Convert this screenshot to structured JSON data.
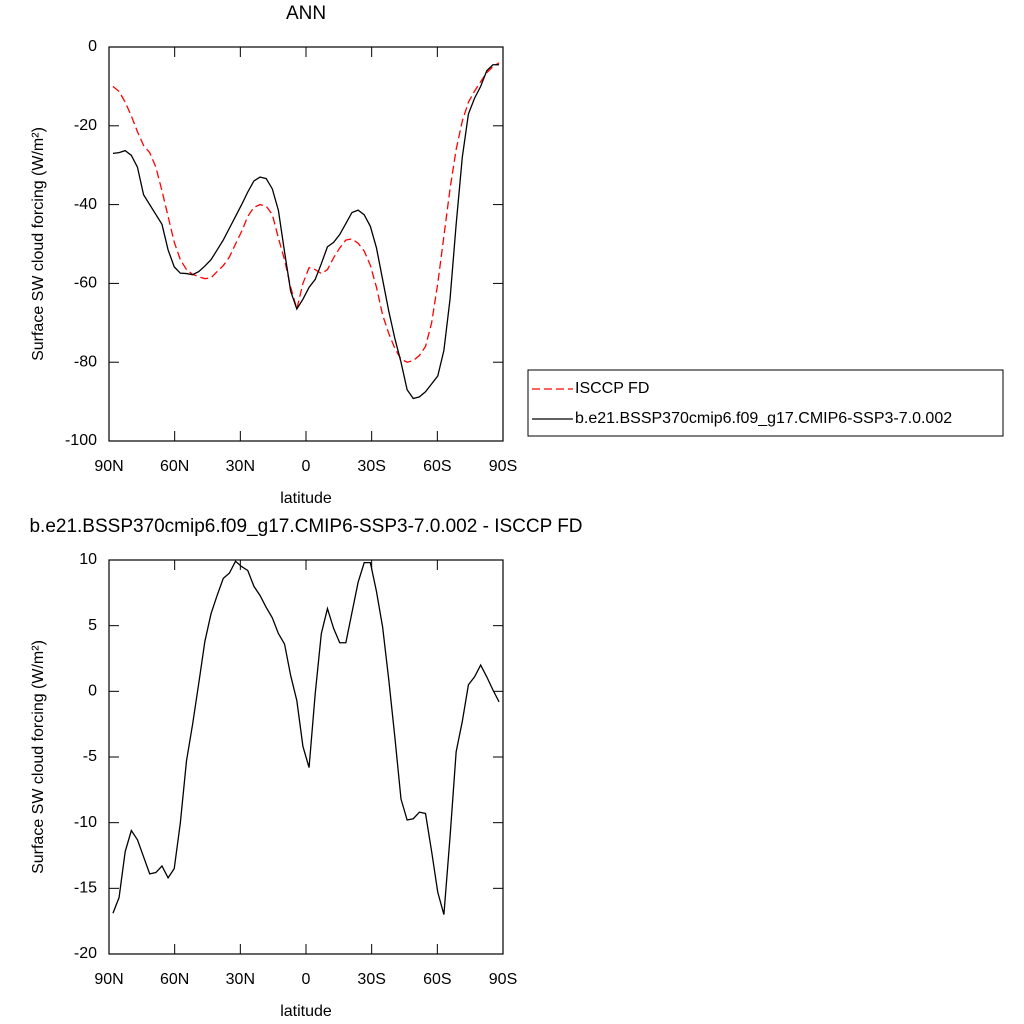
{
  "chart_data": [
    {
      "type": "line",
      "title": "ANN",
      "xlabel": "latitude",
      "ylabel": "Surface SW cloud forcing (W/m²)",
      "x": [
        88.2,
        85.4,
        82.6,
        79.8,
        77,
        74.2,
        71.4,
        68.6,
        65.8,
        63,
        60.2,
        57.4,
        54.6,
        51.8,
        49,
        46.2,
        43.4,
        40.6,
        37.8,
        35,
        32.2,
        29.4,
        26.6,
        23.8,
        21,
        18.2,
        15.4,
        12.6,
        9.8,
        7,
        4.2,
        1.4,
        -1.4,
        -4.2,
        -7,
        -9.8,
        -12.6,
        -15.4,
        -18.2,
        -21,
        -23.8,
        -26.6,
        -29.4,
        -32.2,
        -35,
        -37.8,
        -40.6,
        -43.4,
        -46.2,
        -49,
        -51.8,
        -54.6,
        -57.4,
        -60.2,
        -63,
        -65.8,
        -68.6,
        -71.4,
        -74.2,
        -77,
        -79.8,
        -82.6,
        -85.4,
        -88.2
      ],
      "series": [
        {
          "name": "ISCCP FD",
          "color": "#ff0000",
          "style": "dashed",
          "values": [
            -10,
            -11.3,
            -14,
            -17.5,
            -21.5,
            -25,
            -26.8,
            -30.5,
            -36.5,
            -43,
            -49.5,
            -54,
            -56.5,
            -57.7,
            -58.3,
            -58.8,
            -58.6,
            -57,
            -55.5,
            -53.3,
            -50,
            -46.8,
            -43,
            -40.7,
            -40,
            -40.4,
            -42.5,
            -48.5,
            -54,
            -61,
            -66.5,
            -60,
            -56,
            -56.5,
            -57.5,
            -56.5,
            -53.5,
            -51,
            -49,
            -48.7,
            -49.8,
            -51.8,
            -55.4,
            -61,
            -68,
            -72.7,
            -76.5,
            -79.2,
            -80,
            -79.6,
            -78.3,
            -76,
            -70,
            -60,
            -48,
            -36,
            -26,
            -18.8,
            -14,
            -11.2,
            -8.8,
            -6.5,
            -5,
            -4
          ]
        },
        {
          "name": "b.e21.BSSP370cmip6.f09_g17.CMIP6-SSP3-7.0.002",
          "color": "#000000",
          "style": "solid",
          "values": [
            -27,
            -26.8,
            -26.3,
            -27.5,
            -30.5,
            -37.5,
            -40,
            -42.5,
            -45,
            -51.5,
            -55.8,
            -57.4,
            -57.5,
            -57.8,
            -57,
            -55.6,
            -54,
            -51.5,
            -49,
            -46,
            -43,
            -40,
            -36.8,
            -34,
            -33,
            -33.4,
            -36,
            -41.5,
            -52,
            -62,
            -66.5,
            -64,
            -61,
            -59,
            -55,
            -50.7,
            -49.6,
            -47.6,
            -44.8,
            -42,
            -41.4,
            -42.6,
            -45.5,
            -51,
            -59,
            -67,
            -74,
            -80,
            -87,
            -89.2,
            -88.8,
            -87.5,
            -85.5,
            -83.5,
            -77,
            -64,
            -45,
            -28,
            -17,
            -13,
            -10,
            -6,
            -4.5,
            -4.5
          ]
        }
      ],
      "xlim": [
        90,
        -90
      ],
      "xticks": [
        {
          "value": 90,
          "label": "90N"
        },
        {
          "value": 60,
          "label": "60N"
        },
        {
          "value": 30,
          "label": "30N"
        },
        0,
        {
          "value": -30,
          "label": "30S"
        },
        {
          "value": -60,
          "label": "60S"
        },
        {
          "value": -90,
          "label": "90S"
        }
      ],
      "ylim": [
        -100,
        0
      ],
      "yticks": [
        0,
        -20,
        -40,
        -60,
        -80,
        -100
      ],
      "legend": "right"
    },
    {
      "type": "line",
      "title": "b.e21.BSSP370cmip6.f09_g17.CMIP6-SSP3-7.0.002 - ISCCP FD",
      "xlabel": "latitude",
      "ylabel": "Surface SW cloud forcing (W/m²)",
      "x": [
        88.2,
        85.4,
        82.6,
        79.8,
        77,
        74.2,
        71.4,
        68.6,
        65.8,
        63,
        60.2,
        57.4,
        54.6,
        51.8,
        49,
        46.2,
        43.4,
        40.6,
        37.8,
        35,
        32.2,
        29.4,
        26.6,
        23.8,
        21,
        18.2,
        15.4,
        12.6,
        9.8,
        7,
        4.2,
        1.4,
        -1.4,
        -4.2,
        -7,
        -9.8,
        -12.6,
        -15.4,
        -18.2,
        -21,
        -23.8,
        -26.6,
        -29.4,
        -32.2,
        -35,
        -37.8,
        -40.6,
        -43.4,
        -46.2,
        -49,
        -51.8,
        -54.6,
        -57.4,
        -60.2,
        -63,
        -65.8,
        -68.6,
        -71.4,
        -74.2,
        -77,
        -79.8,
        -82.6,
        -85.4,
        -88.2
      ],
      "series": [
        {
          "color": "#000000",
          "style": "solid",
          "values": [
            -16.9,
            -15.7,
            -12.2,
            -10.6,
            -11.3,
            -12.6,
            -13.9,
            -13.8,
            -13.3,
            -14.2,
            -13.5,
            -10,
            -5.3,
            -2.5,
            0.6,
            3.8,
            5.9,
            7.3,
            8.6,
            9,
            9.9,
            9.5,
            9.2,
            8,
            7.3,
            6.4,
            5.6,
            4.4,
            3.6,
            1.2,
            -0.7,
            -4.2,
            -5.8,
            -0.2,
            4.4,
            6.3,
            4.8,
            3.7,
            3.7,
            6,
            8.3,
            9.8,
            9.8,
            7.6,
            4.9,
            0.9,
            -3.5,
            -8.2,
            -9.8,
            -9.7,
            -9.2,
            -9.3,
            -12.2,
            -15.3,
            -17,
            -11.1,
            -4.6,
            -2.3,
            0.5,
            1.1,
            2,
            1.1,
            0.1,
            -0.8
          ]
        }
      ],
      "xlim": [
        90,
        -90
      ],
      "xticks": [
        {
          "value": 90,
          "label": "90N"
        },
        {
          "value": 60,
          "label": "60N"
        },
        {
          "value": 30,
          "label": "30N"
        },
        0,
        {
          "value": -30,
          "label": "30S"
        },
        {
          "value": -60,
          "label": "60S"
        },
        {
          "value": -90,
          "label": "90S"
        }
      ],
      "ylim": [
        -20,
        10
      ],
      "yticks": [
        10,
        5,
        0,
        -5,
        -10,
        -15,
        -20
      ]
    }
  ]
}
